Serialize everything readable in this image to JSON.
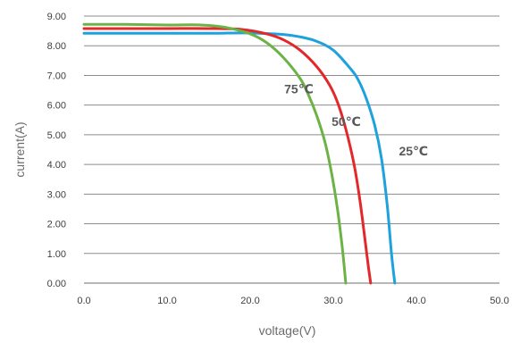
{
  "chart_data": {
    "type": "line",
    "xlabel": "voltage(V)",
    "ylabel": "current(A)",
    "xlim": [
      0,
      50
    ],
    "ylim": [
      0,
      9
    ],
    "x_ticks": [
      "0.0",
      "10.0",
      "20.0",
      "30.0",
      "40.0",
      "50.0"
    ],
    "y_ticks": [
      "0.00",
      "1.00",
      "2.00",
      "3.00",
      "4.00",
      "5.00",
      "6.00",
      "7.00",
      "8.00",
      "9.00"
    ],
    "grid": "horizontal",
    "series": [
      {
        "name": "25°C",
        "color": "#1ea2dc",
        "points": [
          [
            0,
            8.42
          ],
          [
            5,
            8.42
          ],
          [
            10,
            8.42
          ],
          [
            15,
            8.42
          ],
          [
            20,
            8.43
          ],
          [
            24,
            8.38
          ],
          [
            26,
            8.3
          ],
          [
            28,
            8.15
          ],
          [
            30,
            7.85
          ],
          [
            32,
            7.25
          ],
          [
            33,
            6.85
          ],
          [
            34,
            6.2
          ],
          [
            35,
            5.3
          ],
          [
            35.8,
            4.2
          ],
          [
            36.5,
            2.6
          ],
          [
            37,
            1.0
          ],
          [
            37.4,
            0
          ]
        ]
      },
      {
        "name": "50°C",
        "color": "#e2282a",
        "points": [
          [
            0,
            8.58
          ],
          [
            5,
            8.58
          ],
          [
            10,
            8.58
          ],
          [
            15,
            8.58
          ],
          [
            19,
            8.55
          ],
          [
            22,
            8.4
          ],
          [
            24,
            8.2
          ],
          [
            26,
            7.85
          ],
          [
            28,
            7.3
          ],
          [
            29.5,
            6.7
          ],
          [
            30.5,
            6.1
          ],
          [
            31.5,
            5.2
          ],
          [
            32.5,
            4.0
          ],
          [
            33.2,
            2.8
          ],
          [
            33.8,
            1.5
          ],
          [
            34.2,
            0.6
          ],
          [
            34.5,
            0
          ]
        ]
      },
      {
        "name": "75°C",
        "color": "#6cb246",
        "points": [
          [
            0,
            8.72
          ],
          [
            5,
            8.72
          ],
          [
            10,
            8.7
          ],
          [
            14,
            8.7
          ],
          [
            17,
            8.62
          ],
          [
            20,
            8.4
          ],
          [
            22,
            8.1
          ],
          [
            24,
            7.6
          ],
          [
            26,
            6.9
          ],
          [
            27,
            6.35
          ],
          [
            28,
            5.65
          ],
          [
            29,
            4.75
          ],
          [
            29.8,
            3.7
          ],
          [
            30.5,
            2.5
          ],
          [
            31,
            1.4
          ],
          [
            31.3,
            0.6
          ],
          [
            31.5,
            0
          ]
        ]
      }
    ],
    "annotations": [
      {
        "text": "75℃",
        "x": 24.1,
        "y": 6.4,
        "color": "#595959"
      },
      {
        "text": "50℃",
        "x": 29.8,
        "y": 5.3,
        "color": "#595959"
      },
      {
        "text": "25℃",
        "x": 37.9,
        "y": 4.3,
        "color": "#595959"
      }
    ]
  }
}
